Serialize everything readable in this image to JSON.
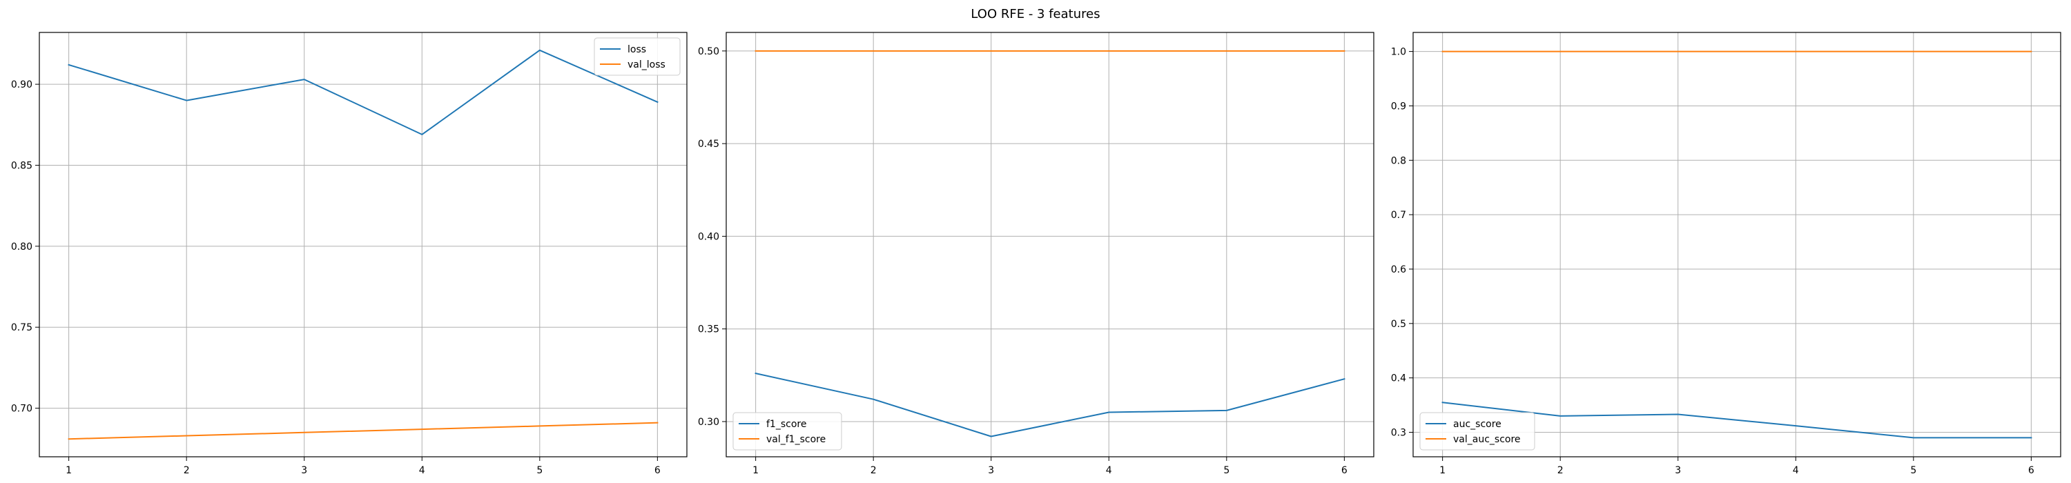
{
  "figure": {
    "title": "LOO RFE - 3 features"
  },
  "chart_data": [
    {
      "type": "line",
      "x": [
        1,
        2,
        3,
        4,
        5,
        6
      ],
      "xticks": [
        "1",
        "2",
        "3",
        "4",
        "5",
        "6"
      ],
      "xlim": [
        0.75,
        6.25
      ],
      "ylim": [
        0.67,
        0.932
      ],
      "yticks": [
        0.7,
        0.75,
        0.8,
        0.85,
        0.9
      ],
      "ytick_labels": [
        "0.70",
        "0.75",
        "0.80",
        "0.85",
        "0.90"
      ],
      "grid": true,
      "legend_position": "top-right",
      "series": [
        {
          "name": "loss",
          "color": "#1f77b4",
          "values": [
            0.912,
            0.89,
            0.903,
            0.869,
            0.921,
            0.889
          ]
        },
        {
          "name": "val_loss",
          "color": "#ff7f0e",
          "values": [
            0.681,
            0.683,
            0.685,
            0.687,
            0.689,
            0.691
          ]
        }
      ]
    },
    {
      "type": "line",
      "x": [
        1,
        2,
        3,
        4,
        5,
        6
      ],
      "xticks": [
        "1",
        "2",
        "3",
        "4",
        "5",
        "6"
      ],
      "xlim": [
        0.75,
        6.25
      ],
      "ylim": [
        0.281,
        0.51
      ],
      "yticks": [
        0.3,
        0.35,
        0.4,
        0.45,
        0.5
      ],
      "ytick_labels": [
        "0.30",
        "0.35",
        "0.40",
        "0.45",
        "0.50"
      ],
      "grid": true,
      "legend_position": "bottom-left",
      "series": [
        {
          "name": "f1_score",
          "color": "#1f77b4",
          "values": [
            0.326,
            0.312,
            0.292,
            0.305,
            0.306,
            0.323
          ]
        },
        {
          "name": "val_f1_score",
          "color": "#ff7f0e",
          "values": [
            0.5,
            0.5,
            0.5,
            0.5,
            0.5,
            0.5
          ]
        }
      ]
    },
    {
      "type": "line",
      "x": [
        1,
        2,
        3,
        4,
        5,
        6
      ],
      "xticks": [
        "1",
        "2",
        "3",
        "4",
        "5",
        "6"
      ],
      "xlim": [
        0.75,
        6.25
      ],
      "ylim": [
        0.255,
        1.035
      ],
      "yticks": [
        0.3,
        0.4,
        0.5,
        0.6,
        0.7,
        0.8,
        0.9,
        1.0
      ],
      "ytick_labels": [
        "0.3",
        "0.4",
        "0.5",
        "0.6",
        "0.7",
        "0.8",
        "0.9",
        "1.0"
      ],
      "grid": true,
      "legend_position": "bottom-left",
      "series": [
        {
          "name": "auc_score",
          "color": "#1f77b4",
          "values": [
            0.355,
            0.33,
            0.333,
            0.312,
            0.29,
            0.29
          ]
        },
        {
          "name": "val_auc_score",
          "color": "#ff7f0e",
          "values": [
            1.0,
            1.0,
            1.0,
            1.0,
            1.0,
            1.0
          ]
        }
      ]
    }
  ]
}
